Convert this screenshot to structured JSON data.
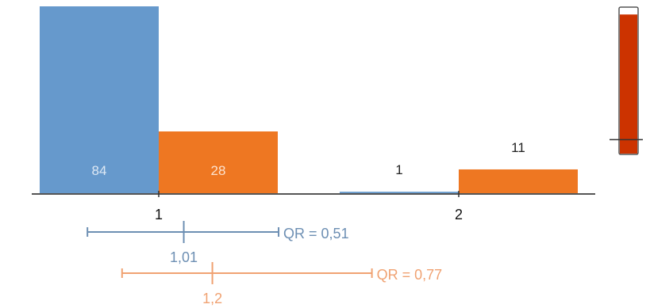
{
  "chart_data": {
    "type": "bar",
    "categories": [
      "1",
      "2"
    ],
    "series": [
      {
        "color": "#6699cc",
        "values": [
          84,
          1
        ]
      },
      {
        "color": "#ee7722",
        "values": [
          28,
          11
        ]
      }
    ],
    "ylim": [
      0,
      84
    ],
    "intervals": [
      {
        "color": "#6d8fb3",
        "low": 0.37,
        "high": 1.64,
        "mean": "1,01",
        "mean_value": 1.01,
        "label": "QR = 0,51"
      },
      {
        "color": "#f0a272",
        "low": 0.6,
        "high": 2.26,
        "mean": "1,2",
        "mean_value": 1.2,
        "label": "QR = 0,77"
      }
    ],
    "interval_axis": {
      "min": 0,
      "max": 2.9
    },
    "side_gauge": {
      "fill_color": "#cc3300",
      "level": 0.95,
      "marker": 0.1
    }
  }
}
